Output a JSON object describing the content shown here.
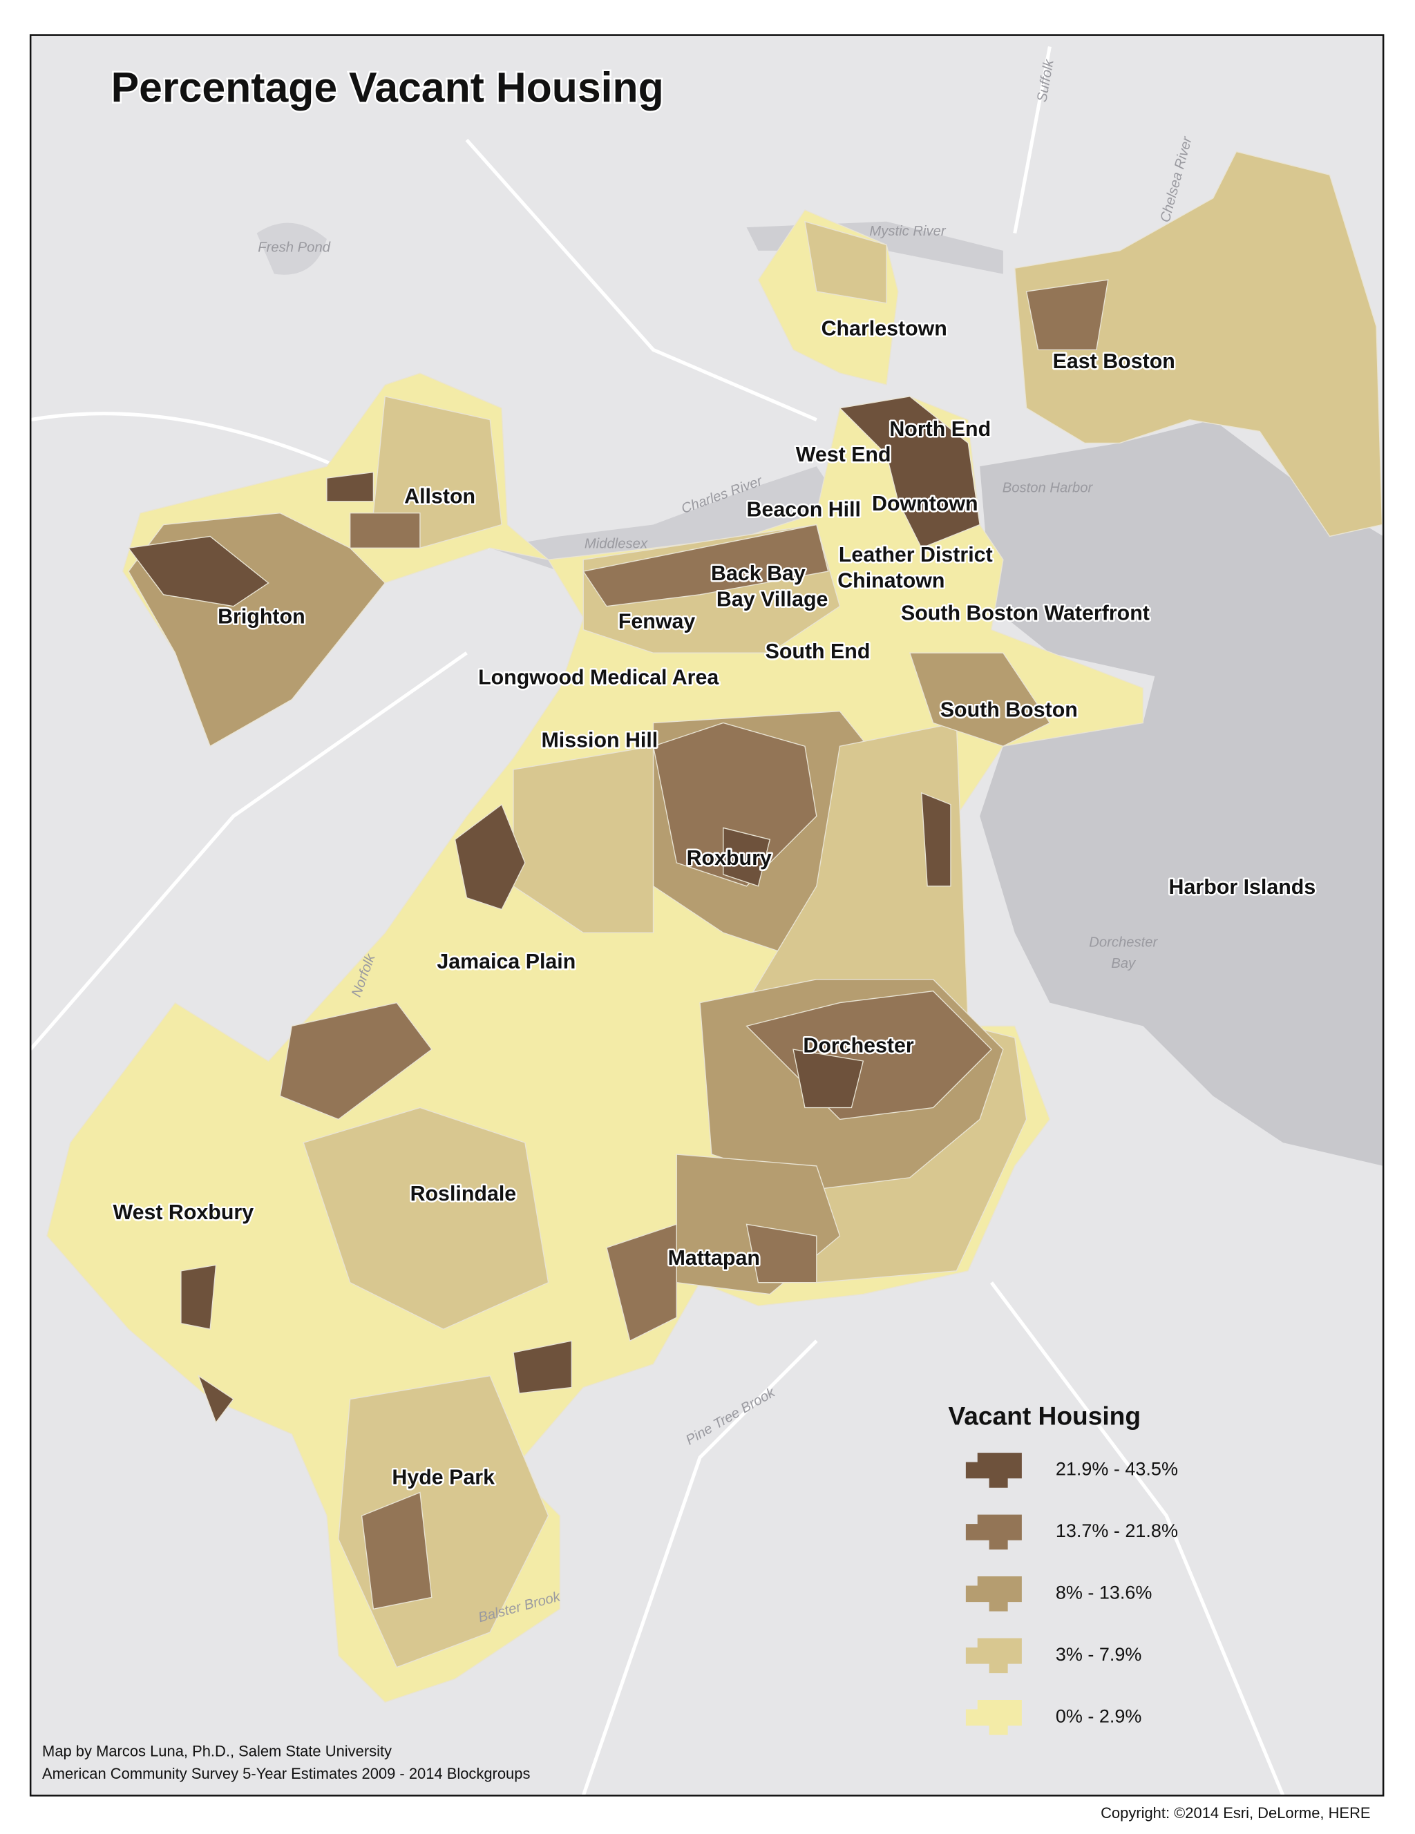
{
  "title": "Percentage Vacant Housing",
  "neighborhoods": [
    "Charlestown",
    "East Boston",
    "North End",
    "West End",
    "Allston",
    "Beacon Hill",
    "Downtown",
    "Leather District",
    "Chinatown",
    "Back Bay",
    "Bay Village",
    "Brighton",
    "Fenway",
    "South Boston Waterfront",
    "South End",
    "Longwood Medical Area",
    "South Boston",
    "Mission Hill",
    "Roxbury",
    "Harbor Islands",
    "Jamaica Plain",
    "Dorchester",
    "Roslindale",
    "West Roxbury",
    "Mattapan",
    "Hyde Park"
  ],
  "water_labels": [
    "Fresh Pond",
    "Mystic River",
    "Boston Harbor",
    "Charles River",
    "Dorchester",
    "Bay",
    "Middlesex",
    "Suffolk",
    "Norfolk",
    "Pine Tree Brook",
    "Balster Brook",
    "Chelsea River"
  ],
  "legend": {
    "title": "Vacant Housing",
    "items": [
      {
        "label": "21.9% - 43.5%",
        "color": "#6e523c"
      },
      {
        "label": "13.7% - 21.8%",
        "color": "#937556"
      },
      {
        "label": "8% - 13.6%",
        "color": "#b59d70"
      },
      {
        "label": "3% - 7.9%",
        "color": "#d8c790"
      },
      {
        "label": "0% - 2.9%",
        "color": "#f3eba7"
      }
    ]
  },
  "credits": [
    "Map by Marcos Luna, Ph.D., Salem State University",
    "American Community Survey 5-Year Estimates 2009 - 2014 Blockgroups"
  ],
  "copyright": "Copyright: ©2014 Esri, DeLorme, HERE"
}
